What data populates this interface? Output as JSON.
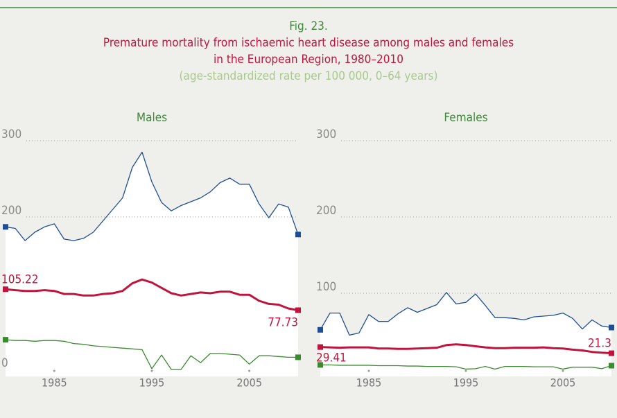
{
  "header": {
    "figure": "Fig. 23.",
    "title": [
      "Premature mortality from ischaemic heart disease among males and females",
      "in the European Region, 1980–2010"
    ],
    "subtitle": "(age-standardized rate per 100 000, 0–64 years)"
  },
  "chart_data": [
    {
      "type": "line",
      "title": "Males",
      "x": [
        1980,
        1981,
        1982,
        1983,
        1984,
        1985,
        1986,
        1987,
        1988,
        1989,
        1990,
        1991,
        1992,
        1993,
        1994,
        1995,
        1996,
        1997,
        1998,
        1999,
        2000,
        2001,
        2002,
        2003,
        2004,
        2005,
        2006,
        2007,
        2008,
        2009,
        2010
      ],
      "xlim": [
        1980,
        2010
      ],
      "xticks": [
        1985,
        1995,
        2005
      ],
      "ylim": [
        0,
        300
      ],
      "yticks": [
        0,
        200,
        300
      ],
      "grid": true,
      "series": [
        {
          "color": "#1f4e96",
          "values": [
            187,
            185,
            169,
            180,
            187,
            191,
            171,
            169,
            172,
            180,
            195,
            210,
            225,
            265,
            285,
            246,
            219,
            208,
            215,
            220,
            225,
            233,
            245,
            251,
            243,
            243,
            217,
            199,
            217,
            213,
            177
          ]
        },
        {
          "color": "#c0143c",
          "values": [
            105.22,
            104,
            103,
            103,
            104,
            103,
            99,
            99,
            97,
            97,
            99,
            100,
            103,
            113,
            118,
            114,
            107,
            100,
            97,
            99,
            101,
            100,
            102,
            102,
            98,
            98,
            90,
            86,
            85,
            80,
            77.73
          ]
        },
        {
          "color": "#3a8a2e",
          "values": [
            39,
            38,
            38,
            37,
            38,
            38,
            37,
            34,
            33,
            31,
            30,
            29,
            28,
            27,
            26,
            1,
            19,
            0,
            0,
            18,
            9,
            21,
            21,
            20,
            19,
            7,
            18,
            18,
            17,
            16,
            16
          ]
        }
      ]
    },
    {
      "type": "line",
      "title": "Females",
      "x": [
        1980,
        1981,
        1982,
        1983,
        1984,
        1985,
        1986,
        1987,
        1988,
        1989,
        1990,
        1991,
        1992,
        1993,
        1994,
        1995,
        1996,
        1997,
        1998,
        1999,
        2000,
        2001,
        2002,
        2003,
        2004,
        2005,
        2006,
        2007,
        2008,
        2009,
        2010
      ],
      "xlim": [
        1980,
        2010
      ],
      "xticks": [
        1985,
        1995,
        2005
      ],
      "ylim": [
        0,
        300
      ],
      "yticks": [
        100,
        200,
        300
      ],
      "grid": true,
      "series": [
        {
          "color": "#1f4e96",
          "values": [
            52,
            74,
            74,
            45,
            48,
            72,
            63,
            63,
            73,
            81,
            75,
            80,
            85,
            101,
            86,
            88,
            99,
            84,
            68,
            68,
            67,
            65,
            69,
            70,
            71,
            74,
            67,
            53,
            65,
            57,
            55
          ]
        },
        {
          "color": "#c0143c",
          "values": [
            29.41,
            29,
            28.5,
            29,
            29,
            29,
            27.5,
            27.5,
            27,
            27,
            27.5,
            28,
            28.5,
            32,
            33,
            32,
            30.5,
            29,
            28,
            28,
            28.5,
            28.5,
            28.5,
            29,
            28,
            27.5,
            26,
            25,
            23,
            22,
            21.3
          ]
        },
        {
          "color": "#3a8a2e",
          "values": [
            6,
            6,
            5.5,
            5.5,
            5.5,
            5.5,
            5,
            5,
            5,
            4.5,
            4.5,
            4,
            4,
            4,
            3.5,
            0.5,
            1,
            4,
            0.5,
            4,
            4,
            4,
            3.5,
            3.5,
            3.5,
            0.5,
            3,
            3,
            3,
            1,
            5
          ]
        }
      ]
    }
  ]
}
